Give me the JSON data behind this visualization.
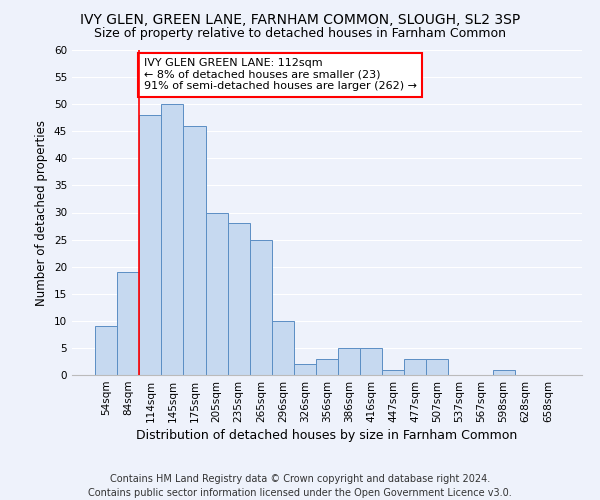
{
  "title1": "IVY GLEN, GREEN LANE, FARNHAM COMMON, SLOUGH, SL2 3SP",
  "title2": "Size of property relative to detached houses in Farnham Common",
  "xlabel": "Distribution of detached houses by size in Farnham Common",
  "ylabel": "Number of detached properties",
  "categories": [
    "54sqm",
    "84sqm",
    "114sqm",
    "145sqm",
    "175sqm",
    "205sqm",
    "235sqm",
    "265sqm",
    "296sqm",
    "326sqm",
    "356sqm",
    "386sqm",
    "416sqm",
    "447sqm",
    "477sqm",
    "507sqm",
    "537sqm",
    "567sqm",
    "598sqm",
    "628sqm",
    "658sqm"
  ],
  "values": [
    9,
    19,
    48,
    50,
    46,
    30,
    28,
    25,
    10,
    2,
    3,
    5,
    5,
    1,
    3,
    3,
    0,
    0,
    1,
    0,
    0
  ],
  "bar_color": "#c6d9f0",
  "bar_edge_color": "#5b8ec4",
  "annotation_text": "IVY GLEN GREEN LANE: 112sqm\n← 8% of detached houses are smaller (23)\n91% of semi-detached houses are larger (262) →",
  "red_line_index": 2,
  "annotation_box_color": "white",
  "annotation_box_edge_color": "red",
  "footer1": "Contains HM Land Registry data © Crown copyright and database right 2024.",
  "footer2": "Contains public sector information licensed under the Open Government Licence v3.0.",
  "ylim": [
    0,
    60
  ],
  "yticks": [
    0,
    5,
    10,
    15,
    20,
    25,
    30,
    35,
    40,
    45,
    50,
    55,
    60
  ],
  "background_color": "#eef2fb",
  "grid_color": "#ffffff",
  "title1_fontsize": 10,
  "title2_fontsize": 9,
  "ylabel_fontsize": 8.5,
  "xlabel_fontsize": 9,
  "tick_fontsize": 7.5,
  "footer_fontsize": 7,
  "annotation_fontsize": 8
}
